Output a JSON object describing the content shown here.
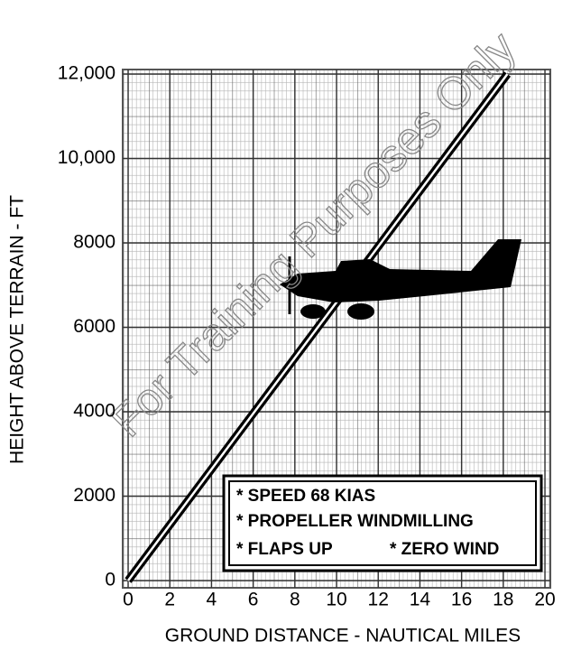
{
  "chart_data": {
    "type": "line",
    "watermark": "For Training Purposes Only",
    "x_label": "GROUND DISTANCE - NAUTICAL MILES",
    "y_label": "HEIGHT ABOVE TERRAIN - FT",
    "notes": [
      "* SPEED 68 KIAS",
      "* PROPELLER WINDMILLING",
      "* FLAPS UP",
      "* ZERO WIND"
    ],
    "x": [
      0,
      18.2
    ],
    "series": [
      {
        "color": "#000000",
        "values": [
          0,
          12000
        ]
      }
    ],
    "xlim": [
      0,
      20
    ],
    "ylim": [
      0,
      12000
    ],
    "xticks": [
      0,
      2,
      4,
      6,
      8,
      10,
      12,
      14,
      16,
      18,
      20
    ],
    "yticks": [
      0,
      2000,
      4000,
      6000,
      8000,
      {
        "value": 10000,
        "label": "10,000"
      },
      {
        "value": 12000,
        "label": "12,000"
      }
    ],
    "grid": true
  }
}
